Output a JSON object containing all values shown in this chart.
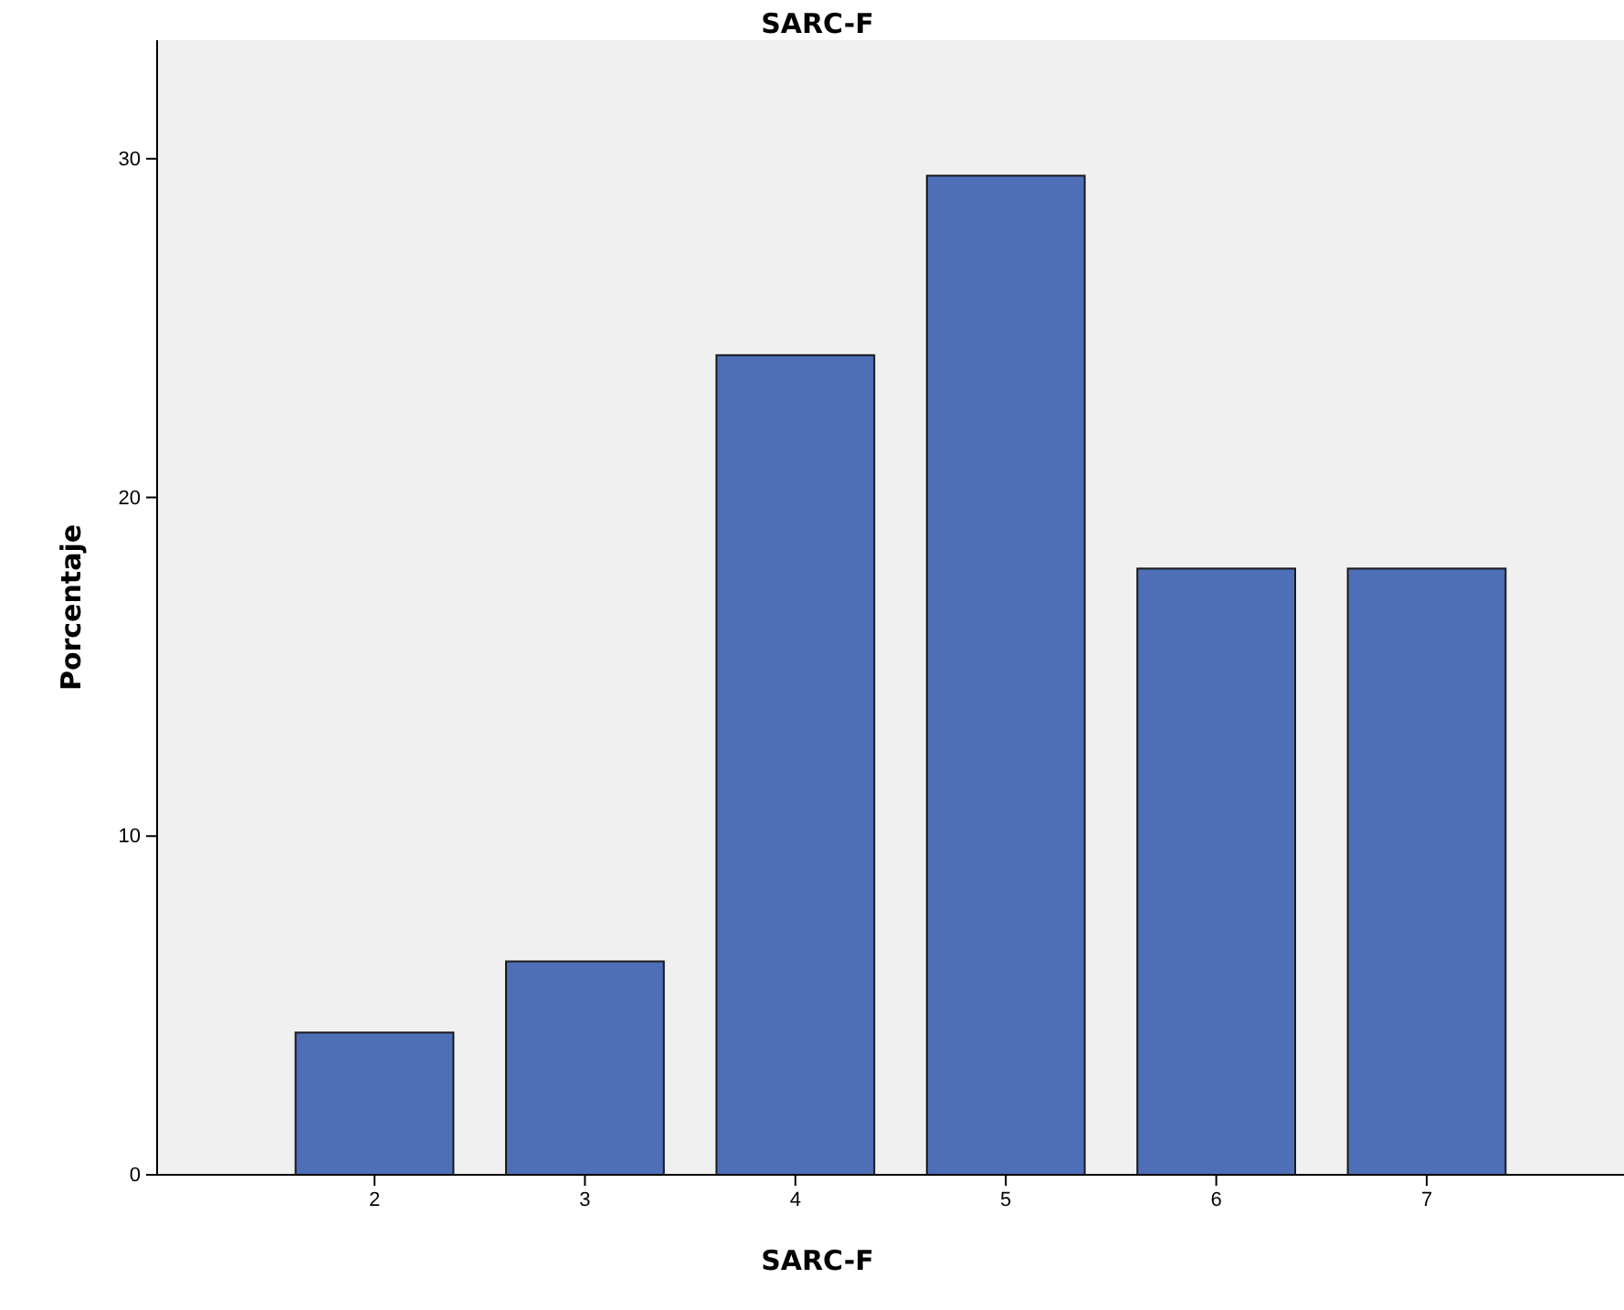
{
  "chart_data": {
    "type": "bar",
    "title": "SARC-F",
    "xlabel": "SARC-F",
    "ylabel": "Porcentaje",
    "categories": [
      "2",
      "3",
      "4",
      "5",
      "6",
      "7"
    ],
    "values": [
      4.2,
      6.3,
      24.2,
      29.5,
      17.9,
      17.9
    ],
    "color": "#4e6eb8",
    "ylim": [
      0,
      33.5
    ],
    "yticks": [
      0,
      10,
      20,
      30
    ],
    "grid": false
  }
}
